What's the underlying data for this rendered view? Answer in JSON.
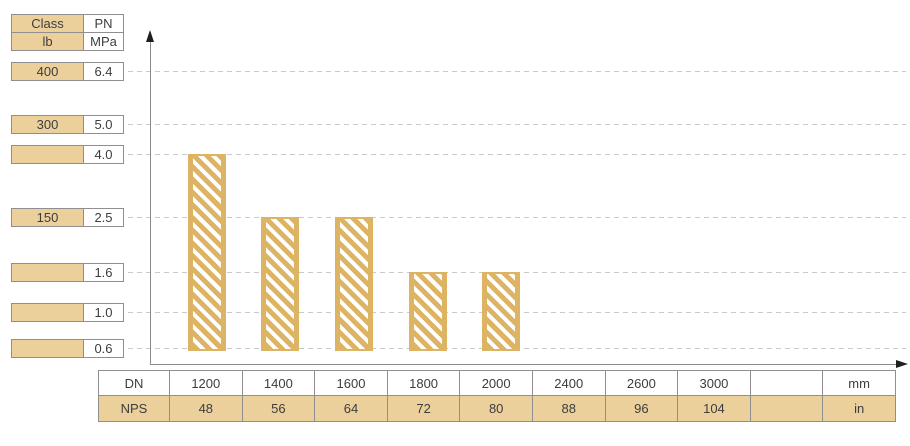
{
  "chart_data": {
    "type": "bar",
    "title": "",
    "categories": [
      "1200",
      "1400",
      "1600",
      "1800",
      "2000",
      "2400",
      "2600",
      "3000"
    ],
    "categories_secondary_nps": [
      "48",
      "56",
      "64",
      "72",
      "80",
      "88",
      "96",
      "104"
    ],
    "values": [
      4.0,
      2.5,
      2.5,
      1.6,
      1.6,
      null,
      null,
      null
    ],
    "xlabel": "DN",
    "x_unit": "mm",
    "x_unit_secondary": "in",
    "ylabel": "PN MPa",
    "y_tick_labels_mpa": [
      "6.4",
      "5.0",
      "4.0",
      "2.5",
      "1.6",
      "1.0",
      "0.6"
    ],
    "y_tick_labels_class_lb": [
      "400",
      "300",
      "",
      "150",
      "",
      "",
      ""
    ],
    "ylim": [
      0.6,
      6.4
    ],
    "grid": "dashed horizontal gridlines at each PN level",
    "legend": "none",
    "bar_style": "gold diagonal hatch with solid gold edges",
    "bar_baseline_value": 0.6
  },
  "left_table": {
    "rows": [
      {
        "class": "Class",
        "pn": "PN"
      },
      {
        "class": "lb",
        "pn": "MPa"
      },
      {
        "class": "400",
        "pn": "6.4"
      },
      {
        "class": "300",
        "pn": "5.0"
      },
      {
        "class": "",
        "pn": "4.0"
      },
      {
        "class": "150",
        "pn": "2.5"
      },
      {
        "class": "",
        "pn": "1.6"
      },
      {
        "class": "",
        "pn": "1.0"
      },
      {
        "class": "",
        "pn": "0.6"
      }
    ]
  },
  "bottom_table": {
    "dn_row": [
      "DN",
      "1200",
      "1400",
      "1600",
      "1800",
      "2000",
      "2400",
      "2600",
      "3000",
      "",
      "mm"
    ],
    "nps_row": [
      "NPS",
      "48",
      "56",
      "64",
      "72",
      "80",
      "88",
      "96",
      "104",
      "",
      "in"
    ]
  },
  "colors": {
    "cell_fill": "#ecd09c",
    "bar_fill": "#dcb464",
    "cell_border": "#8f8f8f",
    "grid": "#c9c9c9",
    "axis": "#8a8a8a",
    "arrow": "#1f1f1f",
    "text": "#3d3d3d",
    "background": "#ffffff"
  }
}
